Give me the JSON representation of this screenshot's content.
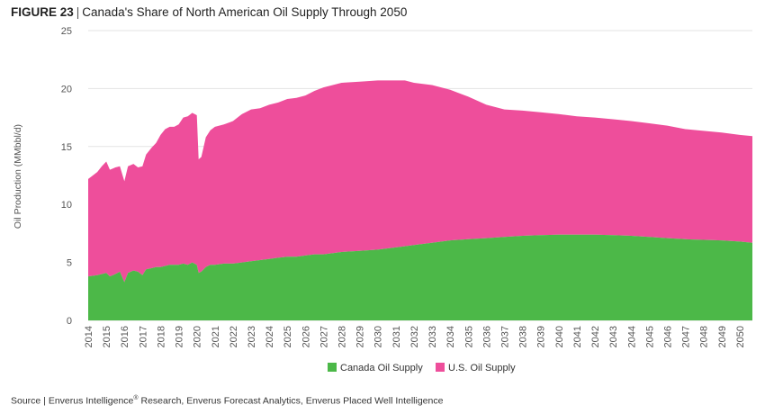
{
  "header": {
    "figure_number": "FIGURE 23",
    "separator": "|",
    "title": "Canada's Share of North American Oil Supply Through 2050"
  },
  "source": {
    "prefix": "Source | Enverus Intelligence",
    "registered": "®",
    "suffix": " Research, Enverus Forecast Analytics, Enverus Placed Well Intelligence"
  },
  "colors": {
    "canada": "#4cb848",
    "us": "#ee4e9b",
    "grid": "#e3e3e3"
  },
  "chart_data": {
    "type": "area",
    "stacked": true,
    "title": "Canada's Share of North American Oil Supply Through 2050",
    "ylabel": "Oil Production (MMbbl/d)",
    "xlabel": "",
    "ylim": [
      0,
      25
    ],
    "yticks": [
      0,
      5,
      10,
      15,
      20,
      25
    ],
    "xlim": [
      2014,
      2050.7
    ],
    "xticks": [
      "2014",
      "2015",
      "2016",
      "2017",
      "2018",
      "2019",
      "2020",
      "2021",
      "2022",
      "2023",
      "2024",
      "2025",
      "2026",
      "2027",
      "2028",
      "2029",
      "2030",
      "2031",
      "2032",
      "2033",
      "2034",
      "2035",
      "2036",
      "2037",
      "2038",
      "2039",
      "2040",
      "2041",
      "2042",
      "2043",
      "2044",
      "2045",
      "2046",
      "2047",
      "2048",
      "2049",
      "2050"
    ],
    "grid": true,
    "legend_position": "bottom",
    "x": [
      2014.0,
      2014.5,
      2014.75,
      2015.0,
      2015.2,
      2015.5,
      2015.75,
      2016.0,
      2016.2,
      2016.5,
      2016.75,
      2017.0,
      2017.2,
      2017.5,
      2017.75,
      2018.0,
      2018.25,
      2018.5,
      2018.75,
      2019.0,
      2019.25,
      2019.5,
      2019.75,
      2020.0,
      2020.1,
      2020.25,
      2020.5,
      2020.75,
      2021.0,
      2021.5,
      2022.0,
      2022.5,
      2023.0,
      2023.5,
      2024.0,
      2024.5,
      2025.0,
      2025.5,
      2026.0,
      2026.5,
      2027.0,
      2028.0,
      2029.0,
      2030.0,
      2031.0,
      2031.5,
      2032.0,
      2033.0,
      2034.0,
      2035.0,
      2036.0,
      2037.0,
      2038.0,
      2039.0,
      2040.0,
      2041.0,
      2042.0,
      2043.0,
      2044.0,
      2045.0,
      2046.0,
      2047.0,
      2048.0,
      2049.0,
      2050.0,
      2050.7
    ],
    "series": [
      {
        "name": "Canada Oil Supply",
        "values": [
          3.8,
          3.9,
          4.0,
          4.1,
          3.8,
          4.0,
          4.2,
          3.3,
          4.1,
          4.3,
          4.2,
          3.9,
          4.4,
          4.5,
          4.6,
          4.6,
          4.7,
          4.8,
          4.8,
          4.8,
          4.9,
          4.8,
          5.0,
          4.8,
          4.1,
          4.2,
          4.6,
          4.8,
          4.8,
          4.9,
          4.9,
          5.0,
          5.1,
          5.2,
          5.3,
          5.4,
          5.5,
          5.5,
          5.6,
          5.7,
          5.7,
          5.9,
          6.0,
          6.1,
          6.3,
          6.4,
          6.5,
          6.7,
          6.9,
          7.0,
          7.1,
          7.2,
          7.3,
          7.35,
          7.4,
          7.4,
          7.4,
          7.35,
          7.3,
          7.2,
          7.1,
          7.0,
          6.95,
          6.9,
          6.8,
          6.7
        ]
      },
      {
        "name": "U.S. Oil Supply",
        "values": [
          8.4,
          8.9,
          9.3,
          9.6,
          9.2,
          9.2,
          9.1,
          8.7,
          9.2,
          9.2,
          9.0,
          9.4,
          9.9,
          10.4,
          10.7,
          11.4,
          11.8,
          11.9,
          11.9,
          12.1,
          12.6,
          12.8,
          12.9,
          12.9,
          9.8,
          9.9,
          11.2,
          11.6,
          11.9,
          12.0,
          12.3,
          12.8,
          13.1,
          13.1,
          13.3,
          13.4,
          13.6,
          13.7,
          13.8,
          14.1,
          14.4,
          14.6,
          14.6,
          14.6,
          14.4,
          14.3,
          14.0,
          13.6,
          13.0,
          12.3,
          11.5,
          11.0,
          10.8,
          10.6,
          10.4,
          10.2,
          10.1,
          10.0,
          9.9,
          9.8,
          9.7,
          9.5,
          9.4,
          9.3,
          9.2,
          9.2
        ]
      }
    ]
  }
}
